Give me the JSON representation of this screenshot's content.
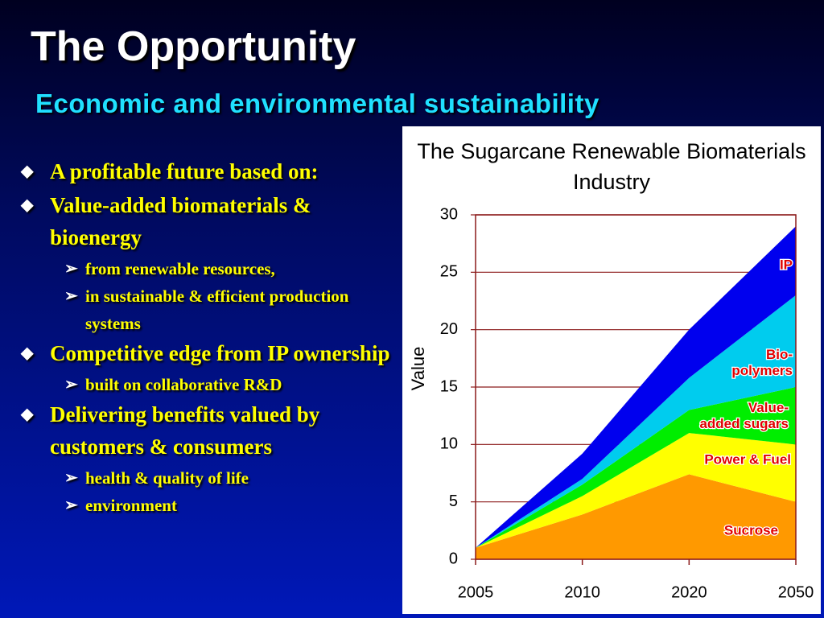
{
  "header": {
    "title": "The Opportunity",
    "subtitle": "Economic and environmental sustainability"
  },
  "bullets": [
    {
      "text": "A profitable future based on:",
      "sub": []
    },
    {
      "text": "Value-added biomaterials & bioenergy",
      "sub": [
        "from renewable resources,",
        "in sustainable & efficient production systems"
      ]
    },
    {
      "text": "Competitive edge from IP ownership",
      "sub": [
        "built on collaborative R&D"
      ]
    },
    {
      "text": "Delivering benefits valued by customers & consumers",
      "sub": [
        "health & quality of life",
        "environment"
      ]
    }
  ],
  "chart_data": {
    "type": "stacked-area",
    "title": "The Sugarcane Renewable Biomaterials Industry",
    "y_label": "Value",
    "categories": [
      "2005",
      "2010",
      "2020",
      "2050"
    ],
    "series": [
      {
        "name": "Sucrose",
        "color": "#ff9900",
        "values": [
          1,
          3.9,
          7.4,
          5
        ]
      },
      {
        "name": "Power & Fuel",
        "color": "#ffff00",
        "values": [
          0,
          1.6,
          3.6,
          5
        ]
      },
      {
        "name": "Value-added sugars",
        "color": "#00ee00",
        "values": [
          0,
          1,
          2,
          5
        ]
      },
      {
        "name": "Bio-polymers",
        "color": "#00ccee",
        "values": [
          0,
          0.5,
          2.8,
          8
        ]
      },
      {
        "name": "IP",
        "color": "#0000ee",
        "values": [
          0,
          2.2,
          4.2,
          6
        ]
      }
    ],
    "ylim": [
      0,
      30
    ],
    "yticks": [
      0,
      5,
      10,
      15,
      20,
      25,
      30
    ],
    "grid": true
  }
}
